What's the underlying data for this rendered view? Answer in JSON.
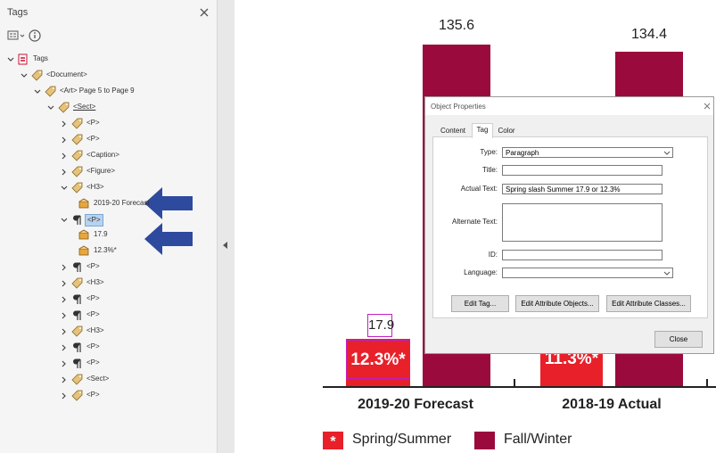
{
  "tags_panel": {
    "title": "Tags",
    "tree": {
      "label": "Tags",
      "icon": "document",
      "expanded": true,
      "children": [
        {
          "label": "<Document>",
          "icon": "tag",
          "expanded": true,
          "children": [
            {
              "label": "<Art> Page 5 to Page 9",
              "icon": "tag",
              "expanded": true,
              "children": [
                {
                  "label": "<Sect>",
                  "icon": "tag",
                  "expanded": true,
                  "underlined": true,
                  "children": [
                    {
                      "label": "<P>",
                      "icon": "tag",
                      "expanded": false
                    },
                    {
                      "label": "<P>",
                      "icon": "tag",
                      "expanded": false
                    },
                    {
                      "label": "<Caption>",
                      "icon": "tag",
                      "expanded": false
                    },
                    {
                      "label": "<Figure>",
                      "icon": "tag",
                      "expanded": false
                    },
                    {
                      "label": "<H3>",
                      "icon": "tag",
                      "expanded": true,
                      "children": [
                        {
                          "label": "2019-20 Forecast",
                          "icon": "content",
                          "arrow": true
                        }
                      ]
                    },
                    {
                      "label": "<P>",
                      "icon": "para",
                      "expanded": true,
                      "selected": true,
                      "children": [
                        {
                          "label": "17.9",
                          "icon": "content"
                        },
                        {
                          "label": "12.3%*",
                          "icon": "content",
                          "arrow": true
                        }
                      ]
                    },
                    {
                      "label": "<P>",
                      "icon": "para",
                      "expanded": false
                    },
                    {
                      "label": "<H3>",
                      "icon": "tag",
                      "expanded": false
                    },
                    {
                      "label": "<P>",
                      "icon": "para",
                      "expanded": false
                    },
                    {
                      "label": "<P>",
                      "icon": "para",
                      "expanded": false
                    },
                    {
                      "label": "<H3>",
                      "icon": "tag",
                      "expanded": false
                    },
                    {
                      "label": "<P>",
                      "icon": "para",
                      "expanded": false
                    },
                    {
                      "label": "<P>",
                      "icon": "para",
                      "expanded": false
                    },
                    {
                      "label": "<Sect>",
                      "icon": "tag",
                      "expanded": false
                    },
                    {
                      "label": "<P>",
                      "icon": "tag",
                      "expanded": false
                    }
                  ]
                }
              ]
            }
          ]
        }
      ]
    }
  },
  "chart": {
    "value_labels": [
      "135.6",
      "134.4"
    ],
    "spring_labels": [
      "12.3%*",
      "11.3%*"
    ],
    "highlighted_label": "17.9",
    "categories": [
      "2019-20 Forecast",
      "2018-19 Actual"
    ],
    "legend": [
      {
        "symbol": "*",
        "label": "Spring/Summer",
        "color": "#e8202a"
      },
      {
        "label": "Fall/Winter",
        "color": "#9b0a3c"
      }
    ]
  },
  "dialog": {
    "title": "Object Properties",
    "tabs": [
      {
        "label": "Content"
      },
      {
        "label": "Tag",
        "active": true
      },
      {
        "label": "Color"
      }
    ],
    "fields": [
      {
        "label": "Type:",
        "kind": "select",
        "value": "Paragraph"
      },
      {
        "label": "Title:",
        "kind": "input"
      },
      {
        "label": "Actual Text:",
        "kind": "input",
        "value": "Spring slash Summer 17.9 or 12.3%"
      },
      {
        "label": "Alternate Text:",
        "kind": "textarea"
      },
      {
        "label": "ID:",
        "kind": "input"
      },
      {
        "label": "Language:",
        "kind": "select"
      }
    ],
    "buttons": [
      "Edit Tag...",
      "Edit Attribute Objects...",
      "Edit Attribute Classes..."
    ],
    "close_button": "Close"
  }
}
